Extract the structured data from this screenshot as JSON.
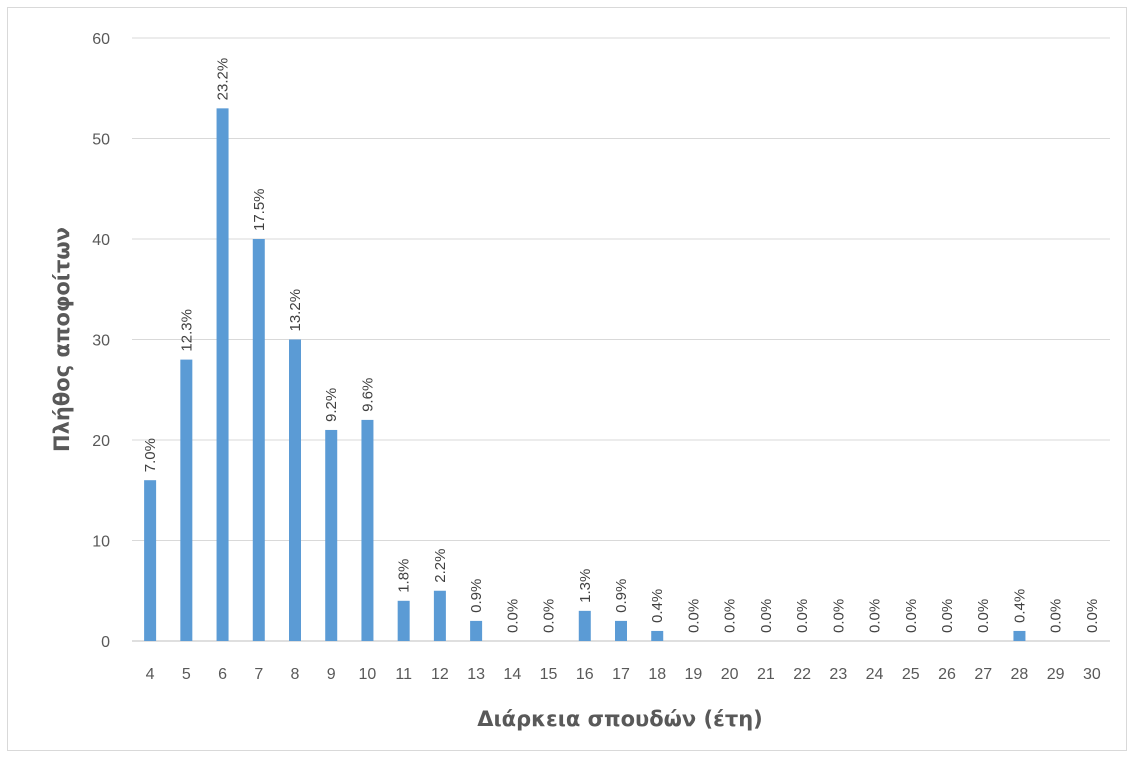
{
  "chart_data": {
    "type": "bar",
    "xlabel": "Διάρκεια σπουδών (έτη)",
    "ylabel": "Πλήθος αποφοίτων",
    "ylim": [
      0,
      60
    ],
    "y_ticks": [
      0,
      10,
      20,
      30,
      40,
      50,
      60
    ],
    "grid": true,
    "legend": "none",
    "bar_color": "#5b9bd5",
    "categories": [
      "4",
      "5",
      "6",
      "7",
      "8",
      "9",
      "10",
      "11",
      "12",
      "13",
      "14",
      "15",
      "16",
      "17",
      "18",
      "19",
      "20",
      "21",
      "22",
      "23",
      "24",
      "25",
      "26",
      "27",
      "28",
      "29",
      "30"
    ],
    "values": [
      16,
      28,
      53,
      40,
      30,
      21,
      22,
      4,
      5,
      2,
      0,
      0,
      3,
      2,
      1,
      0,
      0,
      0,
      0,
      0,
      0,
      0,
      0,
      0,
      1,
      0,
      0
    ],
    "data_labels": [
      "7.0%",
      "12.3%",
      "23.2%",
      "17.5%",
      "13.2%",
      "9.2%",
      "9.6%",
      "1.8%",
      "2.2%",
      "0.9%",
      "0.0%",
      "0.0%",
      "1.3%",
      "0.9%",
      "0.4%",
      "0.0%",
      "0.0%",
      "0.0%",
      "0.0%",
      "0.0%",
      "0.0%",
      "0.0%",
      "0.0%",
      "0.0%",
      "0.4%",
      "0.0%",
      "0.0%"
    ]
  }
}
